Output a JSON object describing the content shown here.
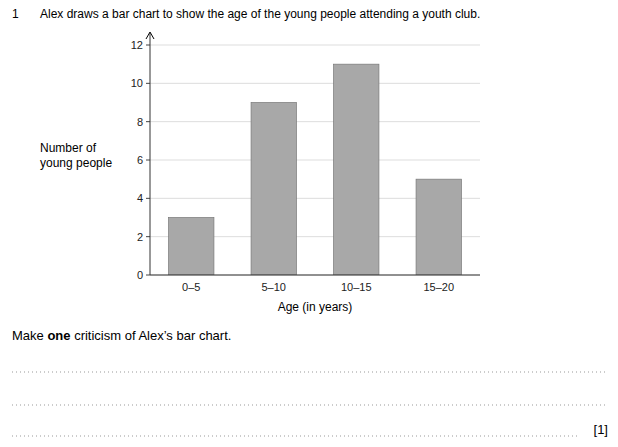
{
  "chart_data": {
    "type": "bar",
    "title": "Alex draws a bar chart to show the age of the young people attending a youth club.",
    "categories": [
      "0–5",
      "5–10",
      "10–15",
      "15–20"
    ],
    "values": [
      3,
      9,
      11,
      5
    ],
    "color": "#a8a8a8",
    "xlabel": "Age (in years)",
    "ylabel": [
      "Number of",
      "young people"
    ],
    "ylim": [
      0,
      12
    ],
    "yticks": [
      0,
      2,
      4,
      6,
      8,
      10,
      12
    ],
    "grid": true,
    "annotations": [
      "1",
      "Make ",
      "one",
      " criticism of Alex’s bar chart.",
      "[1]"
    ]
  }
}
